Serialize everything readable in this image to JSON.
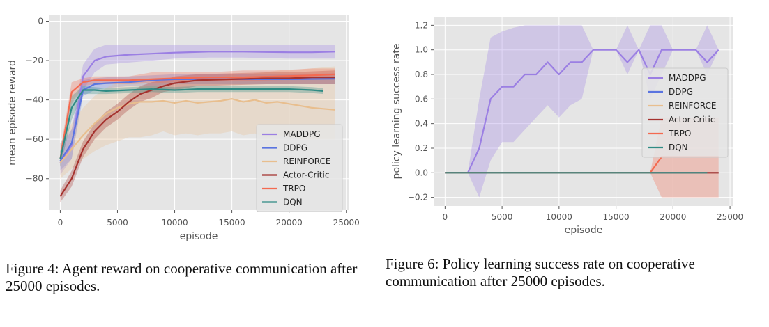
{
  "figures": [
    {
      "caption": "Figure 4:  Agent reward on cooperative communication after 25000 episodes."
    },
    {
      "caption": "Figure 6:  Policy learning success rate on cooperative communication after 25000 episodes."
    }
  ],
  "colors": {
    "background": "#E5E5E5",
    "grid": "#FFFFFF",
    "MADDPG": "#9B7FE3",
    "DDPG": "#5A74E0",
    "REINFORCE": "#E8BE8E",
    "Actor-Critic": "#A5322E",
    "TRPO": "#F46A50",
    "DQN": "#2E8B84"
  },
  "chart_data": [
    {
      "type": "line",
      "title": "",
      "xlabel": "episode",
      "ylabel": "mean episode reward",
      "xlim": [
        -1000,
        25200
      ],
      "ylim": [
        -96,
        3
      ],
      "xticks": [
        0,
        5000,
        10000,
        15000,
        20000,
        25000
      ],
      "yticks": [
        0,
        -20,
        -40,
        -60,
        -80
      ],
      "ytick_labels": [
        "0",
        "−20",
        "−40",
        "−60",
        "−80"
      ],
      "grid": true,
      "legend_position": "lower-right",
      "series": [
        {
          "name": "MADDPG",
          "x": [
            0,
            1000,
            2000,
            3000,
            4000,
            6000,
            8000,
            10000,
            13000,
            16000,
            20000,
            22000,
            24000
          ],
          "y": [
            -72,
            -63,
            -28,
            -20,
            -18,
            -17,
            -16.5,
            -16,
            -15.5,
            -15.5,
            -15.8,
            -15.8,
            -15.5
          ],
          "lower": [
            -78,
            -70,
            -35,
            -26,
            -22,
            -21,
            -20,
            -19,
            -18.5,
            -18.5,
            -19,
            -19,
            -19
          ],
          "upper": [
            -62,
            -55,
            -22,
            -14,
            -12,
            -12,
            -12,
            -12,
            -12,
            -12,
            -12,
            -12,
            -12
          ]
        },
        {
          "name": "DDPG",
          "x": [
            0,
            1000,
            2000,
            3000,
            4000,
            6000,
            8000,
            10000,
            13000,
            16000,
            20000,
            24000
          ],
          "y": [
            -71,
            -62,
            -35,
            -32,
            -31.5,
            -31,
            -30,
            -29.5,
            -29.5,
            -29.5,
            -29.5,
            -29.2
          ],
          "lower": [
            -76,
            -70,
            -38,
            -35,
            -34,
            -33,
            -33,
            -32,
            -32,
            -32,
            -32,
            -32
          ],
          "upper": [
            -66,
            -55,
            -30,
            -29,
            -28.5,
            -28,
            -27.5,
            -27,
            -27,
            -27,
            -27,
            -26.5
          ]
        },
        {
          "name": "REINFORCE",
          "x": [
            0,
            1000,
            2000,
            3000,
            4000,
            5000,
            6000,
            7000,
            8000,
            9000,
            10000,
            11000,
            12000,
            13000,
            14000,
            15000,
            16000,
            17000,
            18000,
            19000,
            20000,
            21000,
            22000,
            23000,
            24000
          ],
          "y": [
            -72,
            -65,
            -58,
            -52,
            -47,
            -44,
            -42,
            -41,
            -41,
            -40.5,
            -41.5,
            -40.5,
            -41.5,
            -41,
            -40.5,
            -39.5,
            -41,
            -40,
            -41.5,
            -41,
            -42,
            -43,
            -44,
            -44.5,
            -45
          ],
          "lower": [
            -80,
            -75,
            -70,
            -66,
            -63,
            -61,
            -59,
            -59,
            -58,
            -56,
            -58,
            -57,
            -58,
            -57,
            -57,
            -56,
            -58,
            -57,
            -59,
            -58,
            -59,
            -60,
            -60,
            -60,
            -60
          ],
          "upper": [
            -62,
            -52,
            -44,
            -38,
            -34,
            -31,
            -30,
            -29,
            -29,
            -28.5,
            -29,
            -28.5,
            -29,
            -28.5,
            -28,
            -27,
            -28,
            -26.5,
            -26,
            -25,
            -25,
            -24.5,
            -24,
            -23.5,
            -23
          ]
        },
        {
          "name": "Actor-Critic",
          "x": [
            0,
            1000,
            2000,
            3000,
            4000,
            5000,
            6000,
            7000,
            8000,
            9000,
            10000,
            12000,
            15000,
            18000,
            20000,
            22000,
            24000
          ],
          "y": [
            -89,
            -80,
            -65,
            -56,
            -50,
            -46,
            -41,
            -37,
            -35,
            -33,
            -31.5,
            -30,
            -29.5,
            -29,
            -29,
            -28.5,
            -28.5
          ],
          "lower": [
            -92,
            -84,
            -69,
            -60,
            -54,
            -50,
            -45,
            -41,
            -39,
            -36,
            -35,
            -33,
            -32.5,
            -32,
            -32,
            -32,
            -32
          ],
          "upper": [
            -86,
            -76,
            -61,
            -52,
            -46,
            -42,
            -37,
            -33,
            -31,
            -30,
            -28,
            -27,
            -26.5,
            -26,
            -26,
            -25.5,
            -25
          ]
        },
        {
          "name": "TRPO",
          "x": [
            0,
            1000,
            2000,
            3000,
            4000,
            6000,
            8000,
            10000,
            13000,
            16000,
            19000,
            22000,
            24000
          ],
          "y": [
            -70,
            -36,
            -31,
            -30,
            -30,
            -30,
            -29.5,
            -29,
            -28.5,
            -28.5,
            -28,
            -27.5,
            -27
          ],
          "lower": [
            -74,
            -42,
            -33,
            -32,
            -32,
            -32,
            -31.5,
            -31,
            -30.5,
            -30.5,
            -30,
            -29.5,
            -29
          ],
          "upper": [
            -66,
            -31,
            -29,
            -28,
            -28,
            -28,
            -26,
            -26,
            -26,
            -25,
            -25,
            -24,
            -24
          ]
        },
        {
          "name": "DQN",
          "x": [
            0,
            1000,
            2000,
            3000,
            4000,
            6000,
            8000,
            10000,
            12000,
            14000,
            16000,
            18000,
            20000,
            22000,
            23000
          ],
          "y": [
            -70,
            -44,
            -35,
            -35,
            -35.5,
            -35,
            -34.5,
            -35,
            -34.5,
            -34.5,
            -34.5,
            -34.5,
            -34.5,
            -35,
            -35.5
          ],
          "lower": [
            -74,
            -50,
            -37,
            -37,
            -37,
            -36.5,
            -36,
            -36.5,
            -36,
            -36,
            -36,
            -36,
            -36,
            -36.5,
            -37
          ],
          "upper": [
            -66,
            -38,
            -33,
            -33.5,
            -34,
            -33.5,
            -33,
            -33.5,
            -33,
            -33,
            -33,
            -33,
            -33,
            -33.5,
            -34
          ]
        }
      ]
    },
    {
      "type": "line",
      "title": "",
      "xlabel": "episode",
      "ylabel": "policy learning success rate",
      "xlim": [
        -1000,
        25300
      ],
      "ylim": [
        -0.27,
        1.27
      ],
      "xticks": [
        0,
        5000,
        10000,
        15000,
        20000,
        25000
      ],
      "yticks": [
        -0.2,
        0.0,
        0.2,
        0.4,
        0.6,
        0.8,
        1.0,
        1.2
      ],
      "ytick_labels": [
        "−0.2",
        "0.0",
        "0.2",
        "0.4",
        "0.6",
        "0.8",
        "1.0",
        "1.2"
      ],
      "grid": true,
      "legend_position": "center-right",
      "series": [
        {
          "name": "MADDPG",
          "x": [
            0,
            2000,
            3000,
            4000,
            5000,
            6000,
            7000,
            8000,
            9000,
            10000,
            11000,
            12000,
            13000,
            14000,
            15000,
            16000,
            17000,
            18000,
            19000,
            20000,
            21000,
            22000,
            23000,
            24000
          ],
          "y": [
            0,
            0,
            0.2,
            0.6,
            0.7,
            0.7,
            0.8,
            0.8,
            0.9,
            0.8,
            0.9,
            0.9,
            1.0,
            1.0,
            1.0,
            0.9,
            1.0,
            0.8,
            1.0,
            1.0,
            1.0,
            1.0,
            0.9,
            1.0
          ],
          "lower": [
            0,
            0,
            -0.2,
            0.1,
            0.25,
            0.25,
            0.35,
            0.45,
            0.55,
            0.45,
            0.55,
            0.6,
            1.0,
            1.0,
            1.0,
            0.8,
            1.0,
            0.6,
            0.8,
            1.0,
            1.0,
            1.0,
            0.8,
            1.0
          ],
          "upper": [
            0,
            0,
            0.6,
            1.1,
            1.15,
            1.18,
            1.2,
            1.2,
            1.2,
            1.2,
            1.2,
            1.2,
            1.0,
            1.0,
            1.0,
            1.2,
            1.0,
            1.2,
            1.2,
            1.0,
            1.0,
            1.0,
            1.2,
            1.0
          ]
        },
        {
          "name": "DDPG",
          "x": [
            0,
            24000
          ],
          "y": [
            0,
            0
          ],
          "lower": [
            0,
            0
          ],
          "upper": [
            0,
            0
          ]
        },
        {
          "name": "REINFORCE",
          "x": [
            0,
            24000
          ],
          "y": [
            0,
            0
          ],
          "lower": [
            0,
            0
          ],
          "upper": [
            0,
            0
          ]
        },
        {
          "name": "Actor-Critic",
          "x": [
            0,
            24000
          ],
          "y": [
            0,
            0
          ],
          "lower": [
            0,
            0
          ],
          "upper": [
            0,
            0
          ]
        },
        {
          "name": "TRPO",
          "x": [
            0,
            18000,
            19000,
            24000
          ],
          "y": [
            0,
            0,
            0.13,
            0.13
          ],
          "lower": [
            0,
            0,
            -0.2,
            -0.2
          ],
          "upper": [
            0,
            0,
            0.45,
            0.45
          ]
        },
        {
          "name": "DQN",
          "x": [
            0,
            23000
          ],
          "y": [
            0,
            0
          ],
          "lower": [
            0,
            0
          ],
          "upper": [
            0,
            0
          ]
        }
      ]
    }
  ]
}
